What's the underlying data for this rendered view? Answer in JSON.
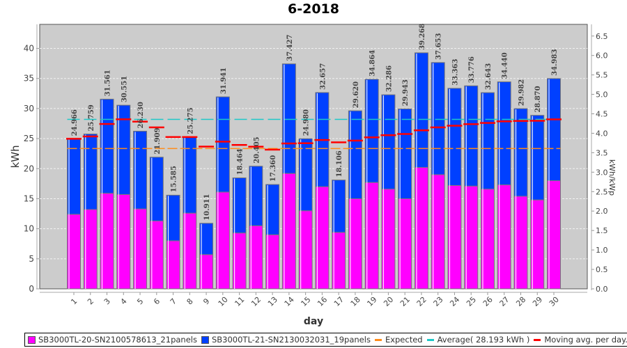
{
  "chart_data": {
    "type": "bar",
    "subtype": "stacked-bar-with-lines",
    "title": "6-2018",
    "xlabel": "day",
    "ylabel": "kWh",
    "y2label": "kWh/kWp",
    "ylim": [
      0,
      44
    ],
    "y2lim": [
      0,
      6.8
    ],
    "yticks": [
      "0",
      "5",
      "10",
      "15",
      "20",
      "25",
      "30",
      "35",
      "40"
    ],
    "y2ticks": [
      "0.0",
      "0.5",
      "1.0",
      "1.5",
      "2.0",
      "2.5",
      "3.0",
      "3.5",
      "4.0",
      "4.5",
      "5.0",
      "5.5",
      "6.0",
      "6.5"
    ],
    "grid": true,
    "legend_position": "bottom",
    "categories": [
      "1",
      "2",
      "3",
      "4",
      "5",
      "6",
      "7",
      "8",
      "9",
      "10",
      "11",
      "12",
      "13",
      "14",
      "15",
      "16",
      "17",
      "18",
      "19",
      "20",
      "21",
      "22",
      "23",
      "24",
      "25",
      "26",
      "27",
      "28",
      "29",
      "30"
    ],
    "totals": [
      24.966,
      25.759,
      31.561,
      30.551,
      26.23,
      21.909,
      15.585,
      25.275,
      10.911,
      31.941,
      18.464,
      20.405,
      17.36,
      37.427,
      24.98,
      32.657,
      18.106,
      29.62,
      34.864,
      32.286,
      29.943,
      39.268,
      37.653,
      33.363,
      33.776,
      32.643,
      34.44,
      29.982,
      28.87,
      34.983
    ],
    "total_labels": [
      "24.966",
      "25.759",
      "31.561",
      "30.551",
      "26.230",
      "21.909",
      "15.585",
      "25.275",
      "10.911",
      "31.941",
      "18.464",
      "20.405",
      "17.360",
      "37.427",
      "24.980",
      "32.657",
      "18.106",
      "29.620",
      "34.864",
      "32.286",
      "29.943",
      "39.268",
      "37.653",
      "33.363",
      "33.776",
      "32.643",
      "34.440",
      "29.982",
      "28.870",
      "34.983"
    ],
    "series": [
      {
        "name": "SB3000TL-20-SN2100578613_21panels",
        "color": "#ff00ff",
        "values": [
          12.4,
          13.2,
          15.9,
          15.7,
          13.3,
          11.3,
          8.0,
          12.6,
          5.7,
          16.1,
          9.3,
          10.5,
          9.0,
          19.2,
          13.0,
          17.0,
          9.4,
          15.0,
          17.7,
          16.6,
          15.0,
          20.2,
          19.0,
          17.2,
          17.1,
          16.6,
          17.3,
          15.4,
          14.8,
          18.0
        ]
      },
      {
        "name": "SB3000TL-21-SN2130032031_19panels",
        "color": "#0040ff",
        "values": [
          12.566,
          12.559,
          15.661,
          14.851,
          12.93,
          10.609,
          7.585,
          12.675,
          5.211,
          15.841,
          9.164,
          9.905,
          8.36,
          18.227,
          11.98,
          15.657,
          8.706,
          14.62,
          17.164,
          15.686,
          14.943,
          19.068,
          18.653,
          16.163,
          16.676,
          16.043,
          17.14,
          14.582,
          14.07,
          16.983
        ]
      }
    ],
    "lines": [
      {
        "name": "Expected",
        "color": "#ff8c1a",
        "style": "dashed",
        "value": 23.35
      },
      {
        "name": "Average( 28.193 kWh )",
        "color": "#1ec8c8",
        "style": "dashed",
        "value": 28.193
      },
      {
        "name": "Moving avg. per day.",
        "color": "#ff0000",
        "style": "segments",
        "values": [
          24.966,
          25.363,
          27.429,
          28.209,
          27.813,
          26.862,
          25.25,
          25.253,
          23.66,
          24.488,
          23.94,
          23.647,
          23.163,
          24.183,
          24.236,
          24.762,
          24.371,
          24.663,
          25.201,
          25.555,
          25.763,
          26.377,
          26.868,
          27.139,
          27.403,
          27.604,
          27.857,
          27.934,
          27.966,
          28.193
        ]
      }
    ]
  },
  "legend": {
    "items": [
      {
        "label": "SB3000TL-20-SN2100578613_21panels",
        "kind": "box",
        "color": "#ff00ff"
      },
      {
        "label": "SB3000TL-21-SN2130032031_19panels",
        "kind": "box",
        "color": "#0040ff"
      },
      {
        "label": "Expected",
        "kind": "line",
        "color": "#ff8c1a"
      },
      {
        "label": "Average( 28.193 kWh )",
        "kind": "line",
        "color": "#1ec8c8"
      },
      {
        "label": "Moving avg. per day.",
        "kind": "line",
        "color": "#ff0000"
      }
    ]
  }
}
